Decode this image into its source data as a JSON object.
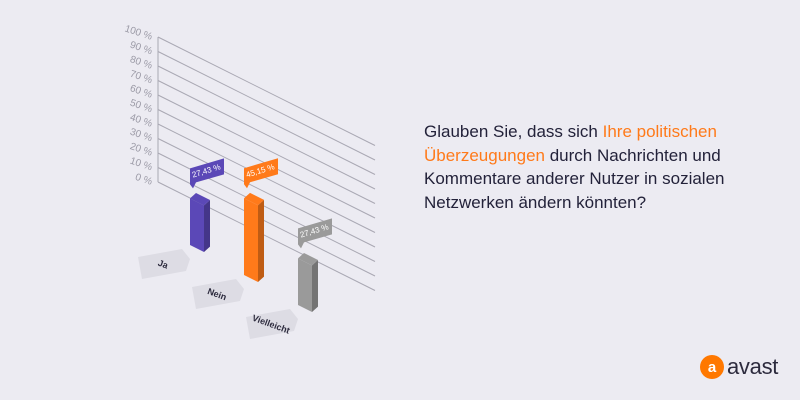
{
  "question": {
    "before": "Glauben Sie, dass sich ",
    "highlight": "Ihre politischen Überzeugungen",
    "after": " durch Nachrichten und Kommentare anderer Nutzer in sozialen Netzwerken ändern könnten?"
  },
  "brand": {
    "name": "avast",
    "color": "#ff7800"
  },
  "chart_data": {
    "type": "bar",
    "categories": [
      "Ja",
      "Nein",
      "Vielleicht"
    ],
    "values": [
      27.43,
      45.15,
      27.43
    ],
    "value_labels": [
      "27,43 %",
      "45,15 %",
      "27,43 %"
    ],
    "colors": [
      "#5b48b7",
      "#ff7a1a",
      "#9a9a9a"
    ],
    "yticks": [
      "0 %",
      "10 %",
      "20 %",
      "30 %",
      "40 %",
      "50 %",
      "60 %",
      "70 %",
      "80 %",
      "90 %",
      "100 %"
    ],
    "ylim": [
      0,
      100
    ],
    "grid": true
  }
}
